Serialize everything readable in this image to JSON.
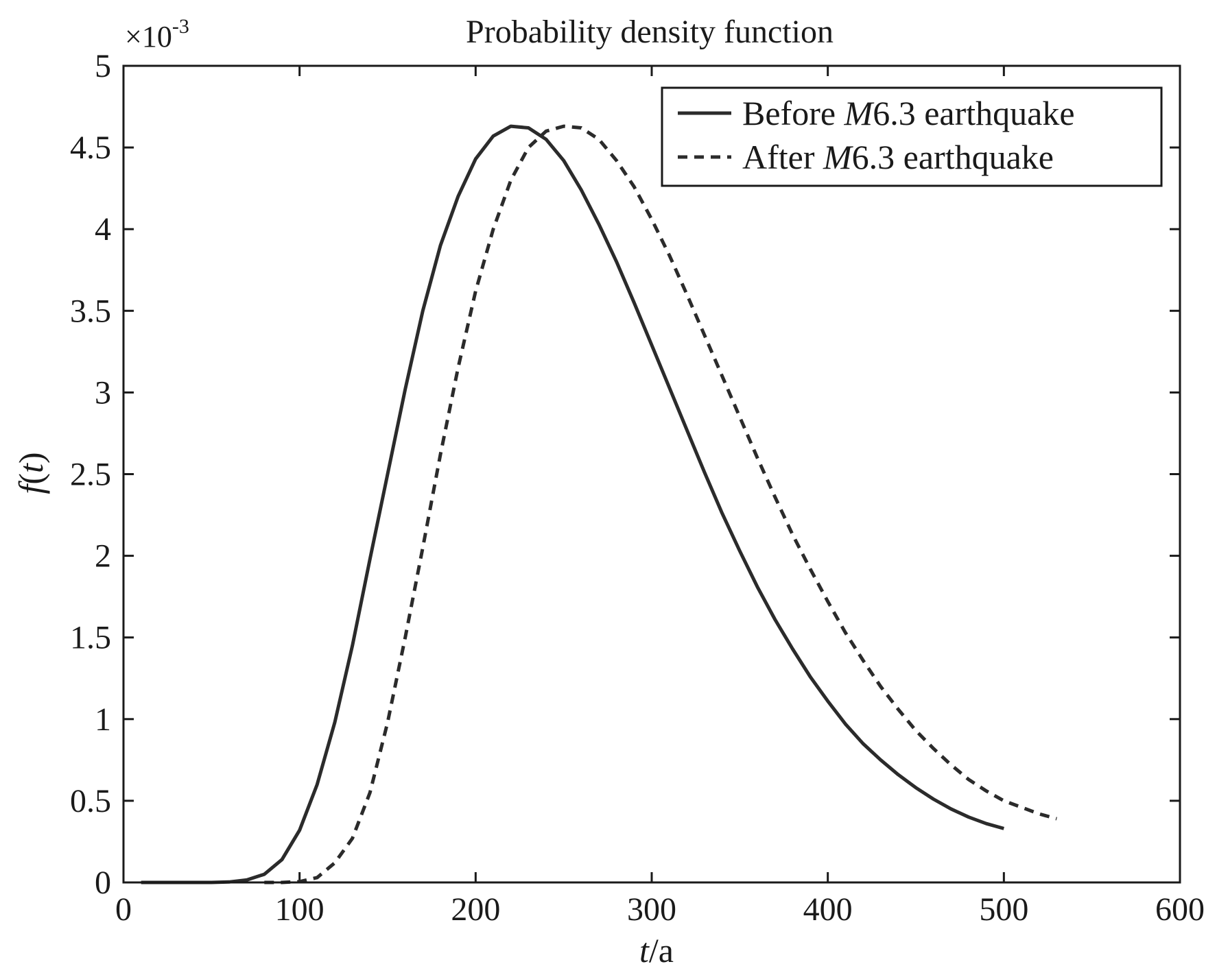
{
  "chart_data": {
    "type": "line",
    "title": "Probability density function",
    "xlabel": {
      "var": "t",
      "unit": "/a"
    },
    "ylabel": {
      "func": "f",
      "var": "t"
    },
    "y_scale_note": {
      "base": "×10",
      "exp": "-3"
    },
    "xlim": [
      0,
      600
    ],
    "ylim": [
      0,
      5
    ],
    "xticks": [
      0,
      100,
      200,
      300,
      400,
      500,
      600
    ],
    "xtick_labels": [
      "0",
      "100",
      "200",
      "300",
      "400",
      "500",
      "600"
    ],
    "yticks": [
      0,
      0.5,
      1,
      1.5,
      2,
      2.5,
      3,
      3.5,
      4,
      4.5,
      5
    ],
    "ytick_labels": [
      "0",
      "0.5",
      "1",
      "1.5",
      "2",
      "2.5",
      "3",
      "3.5",
      "4",
      "4.5",
      "5"
    ],
    "legend_position": "top-right",
    "series": [
      {
        "name": "Before",
        "legend": {
          "pre": "Before ",
          "italic": "M",
          "post": "6.3 earthquake"
        },
        "style": "solid",
        "color": "#2b2b2b",
        "x": [
          10,
          20,
          30,
          40,
          50,
          60,
          70,
          80,
          90,
          100,
          110,
          120,
          130,
          140,
          150,
          160,
          170,
          180,
          190,
          200,
          210,
          220,
          230,
          240,
          250,
          260,
          270,
          280,
          290,
          300,
          310,
          320,
          330,
          340,
          350,
          360,
          370,
          380,
          390,
          400,
          410,
          420,
          430,
          440,
          450,
          460,
          470,
          480,
          490,
          500
        ],
        "y": [
          0,
          0,
          0,
          0,
          0,
          0.003,
          0.015,
          0.05,
          0.14,
          0.32,
          0.6,
          0.98,
          1.45,
          1.98,
          2.5,
          3.02,
          3.5,
          3.9,
          4.2,
          4.43,
          4.57,
          4.63,
          4.62,
          4.55,
          4.42,
          4.24,
          4.03,
          3.8,
          3.55,
          3.29,
          3.03,
          2.77,
          2.51,
          2.26,
          2.03,
          1.81,
          1.61,
          1.43,
          1.26,
          1.11,
          0.97,
          0.85,
          0.75,
          0.66,
          0.58,
          0.51,
          0.45,
          0.4,
          0.36,
          0.33
        ]
      },
      {
        "name": "After",
        "legend": {
          "pre": "After ",
          "italic": "M",
          "post": "6.3 earthquake"
        },
        "style": "dashed",
        "color": "#2b2b2b",
        "x": [
          80,
          90,
          100,
          110,
          120,
          130,
          140,
          150,
          160,
          170,
          180,
          190,
          200,
          210,
          220,
          230,
          240,
          250,
          260,
          270,
          280,
          290,
          300,
          310,
          320,
          330,
          340,
          350,
          360,
          370,
          380,
          390,
          400,
          410,
          420,
          430,
          440,
          450,
          460,
          470,
          480,
          490,
          500,
          510,
          520,
          530
        ],
        "y": [
          0,
          0,
          0.005,
          0.03,
          0.12,
          0.27,
          0.55,
          0.98,
          1.5,
          2.05,
          2.62,
          3.15,
          3.62,
          4.0,
          4.3,
          4.5,
          4.6,
          4.63,
          4.62,
          4.55,
          4.42,
          4.26,
          4.06,
          3.84,
          3.6,
          3.35,
          3.1,
          2.85,
          2.6,
          2.36,
          2.13,
          1.92,
          1.72,
          1.53,
          1.36,
          1.2,
          1.06,
          0.93,
          0.82,
          0.72,
          0.63,
          0.56,
          0.5,
          0.46,
          0.42,
          0.39
        ]
      }
    ]
  }
}
